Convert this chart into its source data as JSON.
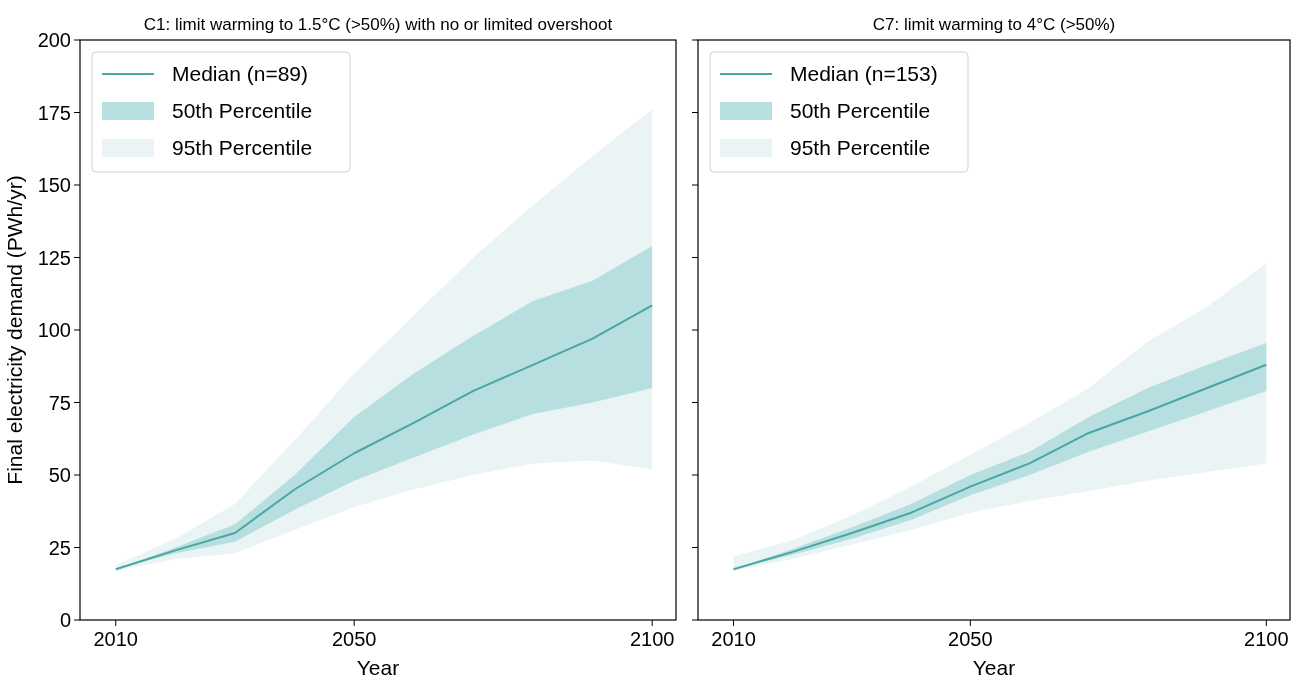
{
  "chart_data": [
    {
      "type": "line",
      "title": "C1: limit warming to 1.5°C (>50%) with no or limited overshoot",
      "xlabel": "Year",
      "ylabel": "Final electricity demand (PWh/yr)",
      "x": [
        2010,
        2020,
        2030,
        2040,
        2050,
        2060,
        2070,
        2080,
        2090,
        2100
      ],
      "series": [
        {
          "name": "95th Percentile",
          "type": "line",
          "color": "#eaf4f5",
          "values": [
            null,
            null,
            null,
            null,
            null,
            null,
            null,
            null,
            null,
            null
          ],
          "lower": [
            17,
            21,
            23,
            31,
            39,
            45,
            50,
            54,
            55,
            52
          ],
          "upper": [
            19,
            28,
            40,
            62,
            85,
            105,
            125,
            143,
            160,
            176
          ]
        },
        {
          "name": "50th Percentile",
          "type": "line",
          "color": "#b8dfdf",
          "values": [
            null,
            null,
            null,
            null,
            null,
            null,
            null,
            null,
            null,
            null
          ],
          "lower": [
            17.5,
            23,
            27,
            38,
            48,
            56,
            64,
            71,
            75,
            80
          ],
          "upper": [
            17.5,
            25,
            33,
            50,
            70,
            85,
            98,
            110,
            117,
            129
          ]
        },
        {
          "name": "Median (n=89)",
          "type": "line",
          "color": "#4aa6a6",
          "values": [
            17.5,
            24,
            30,
            45,
            57.5,
            68,
            79,
            88,
            97,
            108.5
          ]
        }
      ],
      "xlim": [
        2004,
        2104
      ],
      "xticks": [
        2010,
        2050,
        2100
      ],
      "ylim": [
        0,
        200
      ],
      "yticks": [
        0,
        25,
        50,
        75,
        100,
        125,
        150,
        175,
        200
      ],
      "legend": "top left",
      "grid": false
    },
    {
      "type": "line",
      "title": "C7: limit warming to 4°C (>50%)",
      "xlabel": "Year",
      "x": [
        2010,
        2020,
        2030,
        2040,
        2050,
        2060,
        2070,
        2080,
        2090,
        2100
      ],
      "series": [
        {
          "name": "95th Percentile",
          "type": "line",
          "color": "#eaf4f5",
          "values": [
            null,
            null,
            null,
            null,
            null,
            null,
            null,
            null,
            null,
            null
          ],
          "lower": [
            17,
            21,
            26,
            31,
            37,
            41,
            44.5,
            48,
            51,
            54
          ],
          "upper": [
            22,
            27.5,
            36,
            46,
            57,
            68,
            80,
            96,
            108,
            123
          ]
        },
        {
          "name": "50th Percentile",
          "type": "line",
          "color": "#b8dfdf",
          "values": [
            null,
            null,
            null,
            null,
            null,
            null,
            null,
            null,
            null,
            null
          ],
          "lower": [
            17.5,
            22.5,
            28,
            34.5,
            43,
            50,
            58,
            65,
            72,
            79
          ],
          "upper": [
            17.5,
            24.5,
            32,
            40,
            50,
            58,
            70,
            80,
            88,
            95.5
          ]
        },
        {
          "name": "Median (n=153)",
          "type": "line",
          "color": "#4aa6a6",
          "values": [
            17.5,
            23.5,
            30,
            37,
            46,
            54,
            64.5,
            72,
            80,
            88
          ]
        }
      ],
      "xlim": [
        2004,
        2104
      ],
      "xticks": [
        2010,
        2050,
        2100
      ],
      "ylim": [
        0,
        200
      ],
      "yticks": [
        0,
        25,
        50,
        75,
        100,
        125,
        150,
        175,
        200
      ],
      "tick_labels": "x",
      "legend": "top left",
      "grid": false
    }
  ]
}
